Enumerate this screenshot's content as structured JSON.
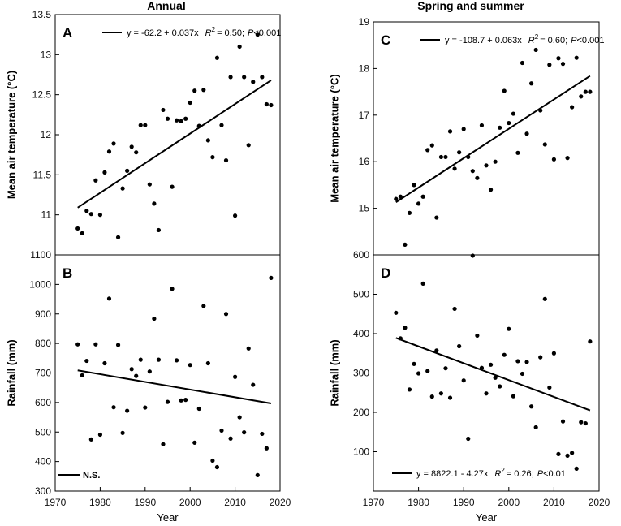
{
  "chart_data": [
    {
      "panel": "A",
      "type": "scatter",
      "column_title": "Annual",
      "ylabel": "Mean air temperature (°C)",
      "xlabel": "",
      "xlim": [
        1970,
        2020
      ],
      "ylim": [
        10.5,
        13.5
      ],
      "yticks": [
        11,
        11.5,
        12,
        12.5,
        13,
        13.5
      ],
      "ytick_labels": [
        "11",
        "11.5",
        "12",
        "12.5",
        "13",
        "13.5"
      ],
      "x": [
        1975,
        1976,
        1977,
        1978,
        1979,
        1980,
        1981,
        1982,
        1983,
        1984,
        1985,
        1986,
        1987,
        1988,
        1989,
        1990,
        1991,
        1992,
        1993,
        1994,
        1995,
        1996,
        1997,
        1998,
        1999,
        2000,
        2001,
        2002,
        2003,
        2004,
        2005,
        2006,
        2007,
        2008,
        2009,
        2010,
        2011,
        2012,
        2013,
        2014,
        2015,
        2016,
        2017,
        2018
      ],
      "y": [
        10.83,
        10.77,
        11.05,
        11.01,
        11.43,
        11.0,
        11.53,
        11.79,
        11.89,
        10.72,
        11.33,
        11.55,
        11.85,
        11.78,
        12.12,
        12.12,
        11.38,
        11.14,
        10.81,
        12.31,
        12.2,
        11.35,
        12.18,
        12.17,
        12.2,
        12.4,
        12.55,
        12.11,
        12.56,
        11.93,
        11.72,
        12.96,
        12.12,
        11.68,
        12.72,
        10.99,
        13.1,
        12.72,
        11.87,
        12.66,
        13.25,
        12.72,
        12.38,
        12.37
      ],
      "fit": {
        "x": [
          1975,
          2018
        ],
        "y": [
          11.09,
          12.68
        ],
        "style": "solid"
      },
      "annotation": {
        "equation": "y = -62.2 + 0.037x",
        "r2_label": "R",
        "r2_sup": "2",
        "r2_value": "= 0.50;",
        "p_label": "P",
        "p_value": "<0.001"
      }
    },
    {
      "panel": "B",
      "type": "scatter",
      "ylabel": "Rainfall (mm)",
      "xlabel": "Year",
      "xlim": [
        1970,
        2020
      ],
      "ylim": [
        300,
        1100
      ],
      "yticks": [
        300,
        400,
        500,
        600,
        700,
        800,
        900,
        1000,
        1100
      ],
      "ytick_labels": [
        "300",
        "400",
        "500",
        "600",
        "700",
        "800",
        "900",
        "1000",
        "1100"
      ],
      "xticks": [
        1970,
        1980,
        1990,
        2000,
        2010,
        2020
      ],
      "xtick_labels": [
        "1970",
        "1980",
        "1990",
        "2000",
        "2010",
        "2020"
      ],
      "x": [
        1975,
        1976,
        1977,
        1978,
        1979,
        1980,
        1981,
        1982,
        1983,
        1984,
        1985,
        1986,
        1987,
        1988,
        1989,
        1990,
        1991,
        1992,
        1993,
        1994,
        1995,
        1996,
        1997,
        1998,
        1999,
        2000,
        2001,
        2002,
        2003,
        2004,
        2005,
        2006,
        2007,
        2008,
        2009,
        2010,
        2011,
        2012,
        2013,
        2014,
        2015,
        2016,
        2017,
        2018
      ],
      "y": [
        797,
        692,
        741,
        475,
        797,
        491,
        733,
        952,
        584,
        795,
        497,
        572,
        713,
        690,
        745,
        583,
        705,
        884,
        745,
        459,
        602,
        985,
        743,
        607,
        609,
        727,
        464,
        579,
        927,
        733,
        403,
        381,
        505,
        900,
        478,
        687,
        550,
        499,
        783,
        660,
        354,
        494,
        445,
        1022
      ],
      "fit": {
        "x": [
          1975,
          2018
        ],
        "y": [
          709,
          597
        ],
        "style": "solid"
      },
      "annotation": {
        "legend_text": "N.S."
      }
    },
    {
      "panel": "C",
      "type": "scatter",
      "column_title": "Spring and summer",
      "ylabel": "Mean air temperature (°C)",
      "xlabel": "",
      "xlim": [
        1970,
        2020
      ],
      "ylim": [
        14,
        19
      ],
      "yticks": [
        15,
        16,
        17,
        18,
        19
      ],
      "ytick_labels": [
        "15",
        "16",
        "17",
        "18",
        "19"
      ],
      "x": [
        1975,
        1976,
        1977,
        1978,
        1979,
        1980,
        1981,
        1982,
        1983,
        1984,
        1985,
        1986,
        1987,
        1988,
        1989,
        1990,
        1991,
        1992,
        1993,
        1994,
        1995,
        1996,
        1997,
        1998,
        1999,
        2000,
        2001,
        2002,
        2003,
        2004,
        2005,
        2006,
        2007,
        2008,
        2009,
        2010,
        2011,
        2012,
        2013,
        2014,
        2015,
        2016,
        2017,
        2018
      ],
      "y": [
        15.2,
        15.25,
        14.22,
        14.9,
        15.5,
        15.1,
        15.25,
        16.25,
        16.35,
        14.8,
        16.1,
        16.1,
        16.65,
        15.85,
        16.2,
        16.7,
        16.1,
        15.8,
        15.65,
        16.78,
        15.92,
        15.4,
        16.0,
        16.73,
        17.52,
        16.83,
        17.03,
        16.19,
        18.12,
        16.6,
        17.68,
        18.4,
        17.1,
        16.37,
        18.08,
        16.05,
        18.22,
        18.1,
        16.08,
        17.17,
        18.23,
        17.4,
        17.5,
        17.5
      ],
      "fit": {
        "x": [
          1975,
          2018
        ],
        "y": [
          15.13,
          17.84
        ],
        "style": "solid"
      },
      "annotation": {
        "equation": "y = -108.7 + 0.063x",
        "r2_label": "R",
        "r2_sup": "2",
        "r2_value": "= 0.60;",
        "p_label": "P",
        "p_value": "<0.001"
      }
    },
    {
      "panel": "D",
      "type": "scatter",
      "ylabel": "Rainfall (mm)",
      "xlabel": "Year",
      "xlim": [
        1970,
        2020
      ],
      "ylim": [
        0,
        600
      ],
      "yticks": [
        100,
        200,
        300,
        400,
        500,
        600
      ],
      "ytick_labels": [
        "100",
        "200",
        "300",
        "400",
        "500",
        "600"
      ],
      "xticks": [
        1970,
        1980,
        1990,
        2000,
        2010,
        2020
      ],
      "xtick_labels": [
        "1970",
        "1980",
        "1990",
        "2000",
        "2010",
        "2020"
      ],
      "x": [
        1975,
        1976,
        1977,
        1978,
        1979,
        1980,
        1981,
        1982,
        1983,
        1984,
        1985,
        1986,
        1987,
        1988,
        1989,
        1990,
        1991,
        1992,
        1993,
        1994,
        1995,
        1996,
        1997,
        1998,
        1999,
        2000,
        2001,
        2002,
        2003,
        2004,
        2005,
        2006,
        2007,
        2008,
        2009,
        2010,
        2011,
        2012,
        2013,
        2014,
        2015,
        2016,
        2017,
        2018
      ],
      "y": [
        453,
        388,
        415,
        258,
        323,
        299,
        527,
        305,
        240,
        357,
        248,
        312,
        237,
        463,
        368,
        281,
        133,
        598,
        395,
        313,
        248,
        321,
        288,
        266,
        346,
        412,
        241,
        330,
        298,
        328,
        215,
        162,
        340,
        488,
        263,
        350,
        94,
        177,
        90,
        97,
        57,
        175,
        172,
        380
      ],
      "fit": {
        "x": [
          1975,
          2018
        ],
        "y": [
          389,
          205
        ],
        "style": "solid"
      },
      "annotation": {
        "equation": "y = 8822.1 - 4.27x",
        "r2_label": "R",
        "r2_sup": "2",
        "r2_value": "= 0.26;",
        "p_label": "P",
        "p_value": "<0.01"
      }
    }
  ]
}
